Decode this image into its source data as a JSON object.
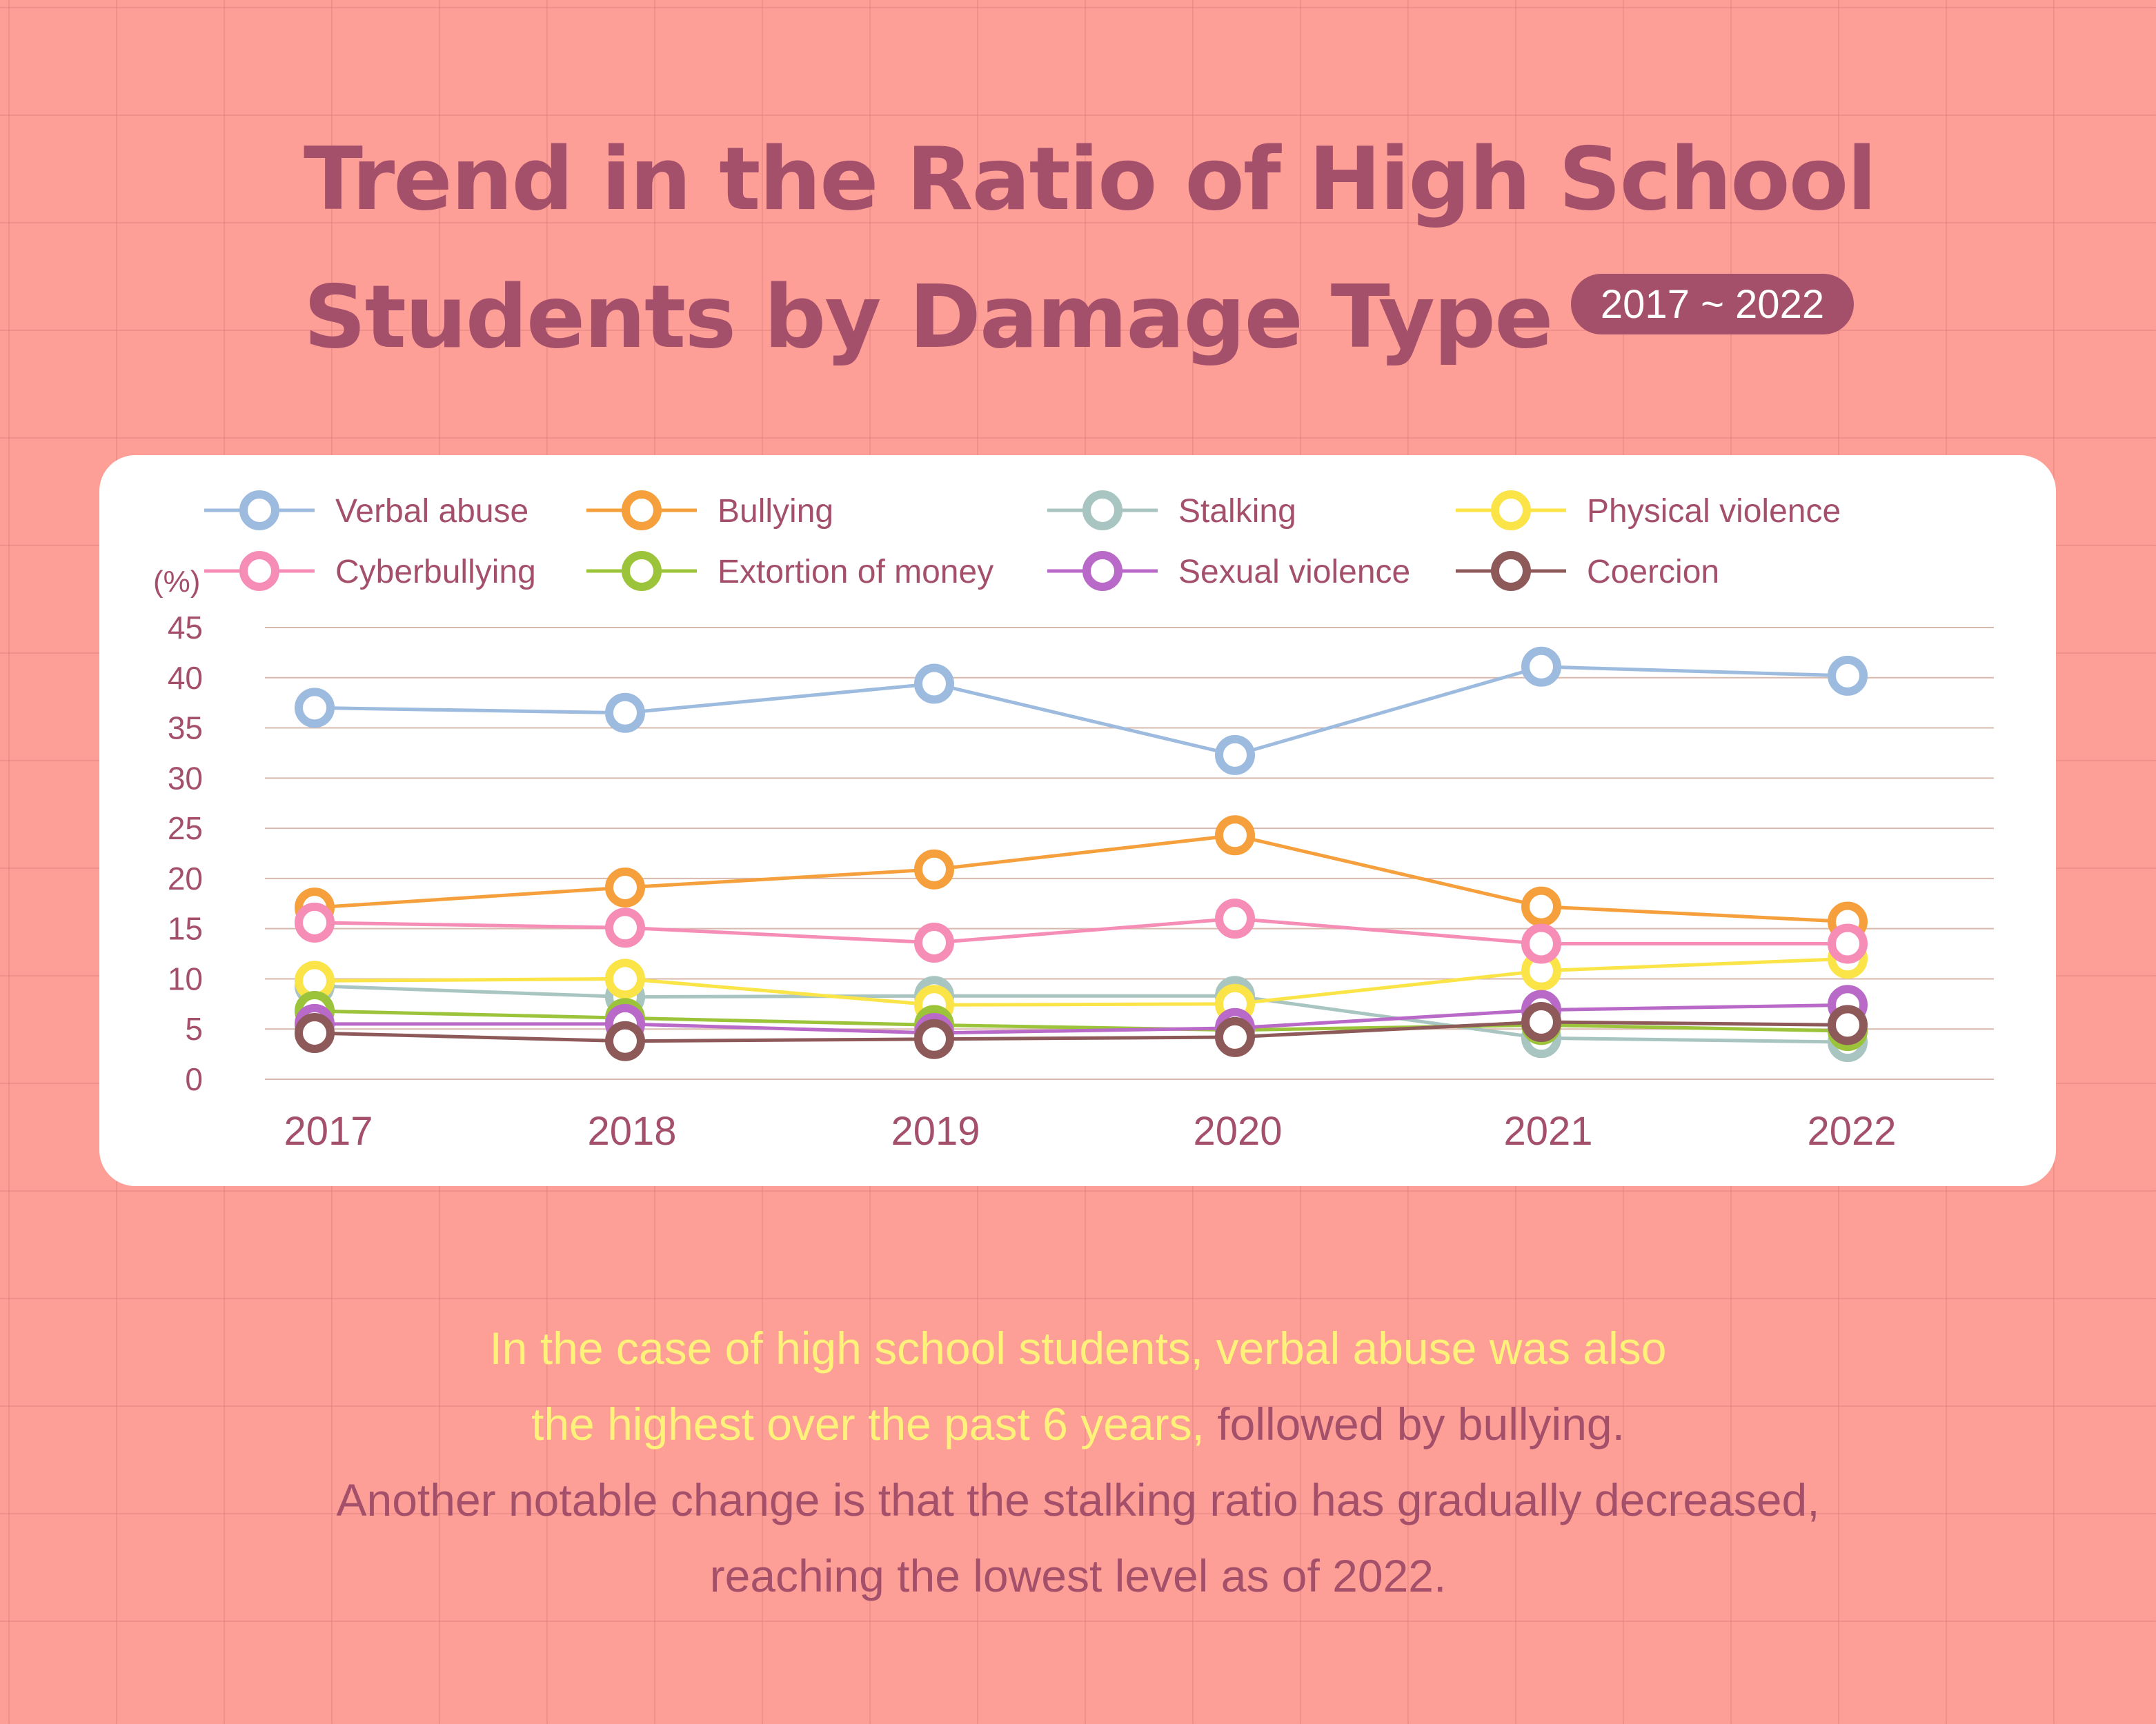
{
  "title": {
    "line1": "Trend in the Ratio of High School",
    "line2": "Students by Damage Type",
    "period_badge": "2017 ~ 2022"
  },
  "chart_data": {
    "type": "line",
    "ylabel": "(%)",
    "ylim": [
      0,
      45
    ],
    "yticks": [
      0,
      5,
      10,
      15,
      20,
      25,
      30,
      35,
      40,
      45
    ],
    "grid": true,
    "legend_position": "top",
    "categories": [
      "2017",
      "2018",
      "2019",
      "2020",
      "2021",
      "2022"
    ],
    "series": [
      {
        "name": "Verbal abuse",
        "color": "#9dbbde",
        "values": [
          37.0,
          36.5,
          39.4,
          32.3,
          41.1,
          40.2
        ]
      },
      {
        "name": "Bullying",
        "color": "#f5a03c",
        "values": [
          17.1,
          19.1,
          20.9,
          24.3,
          17.2,
          15.7
        ]
      },
      {
        "name": "Stalking",
        "color": "#a9c5c1",
        "values": [
          9.3,
          8.2,
          8.3,
          8.3,
          4.1,
          3.7
        ]
      },
      {
        "name": "Physical violence",
        "color": "#fbe447",
        "values": [
          9.8,
          10.0,
          7.4,
          7.5,
          10.8,
          12.0
        ]
      },
      {
        "name": "Cyberbullying",
        "color": "#f58db6",
        "values": [
          15.6,
          15.1,
          13.6,
          16.0,
          13.5,
          13.5
        ]
      },
      {
        "name": "Extortion of money",
        "color": "#9cc43a",
        "values": [
          6.8,
          6.1,
          5.4,
          4.9,
          5.4,
          4.8
        ]
      },
      {
        "name": "Sexual violence",
        "color": "#b969c7",
        "values": [
          5.5,
          5.5,
          4.6,
          5.1,
          6.9,
          7.4
        ]
      },
      {
        "name": "Coercion",
        "color": "#8d5a59",
        "values": [
          4.6,
          3.8,
          4.0,
          4.2,
          5.7,
          5.4
        ]
      }
    ]
  },
  "captions": {
    "p1_highlight_a": "In the case of high school students, verbal abuse was also",
    "p1_highlight_b": "the highest over the past 6 years,",
    "p1_rest": " followed by bullying.",
    "p2_line1": "Another notable change is that the stalking ratio has gradually decreased,",
    "p2_line2": "reaching the lowest level as of 2022."
  },
  "colors": {
    "background": "#fd9e97",
    "title": "#a5506b",
    "highlight": "#fff27a",
    "card": "#ffffff",
    "gridline": "#d8b9ae"
  }
}
